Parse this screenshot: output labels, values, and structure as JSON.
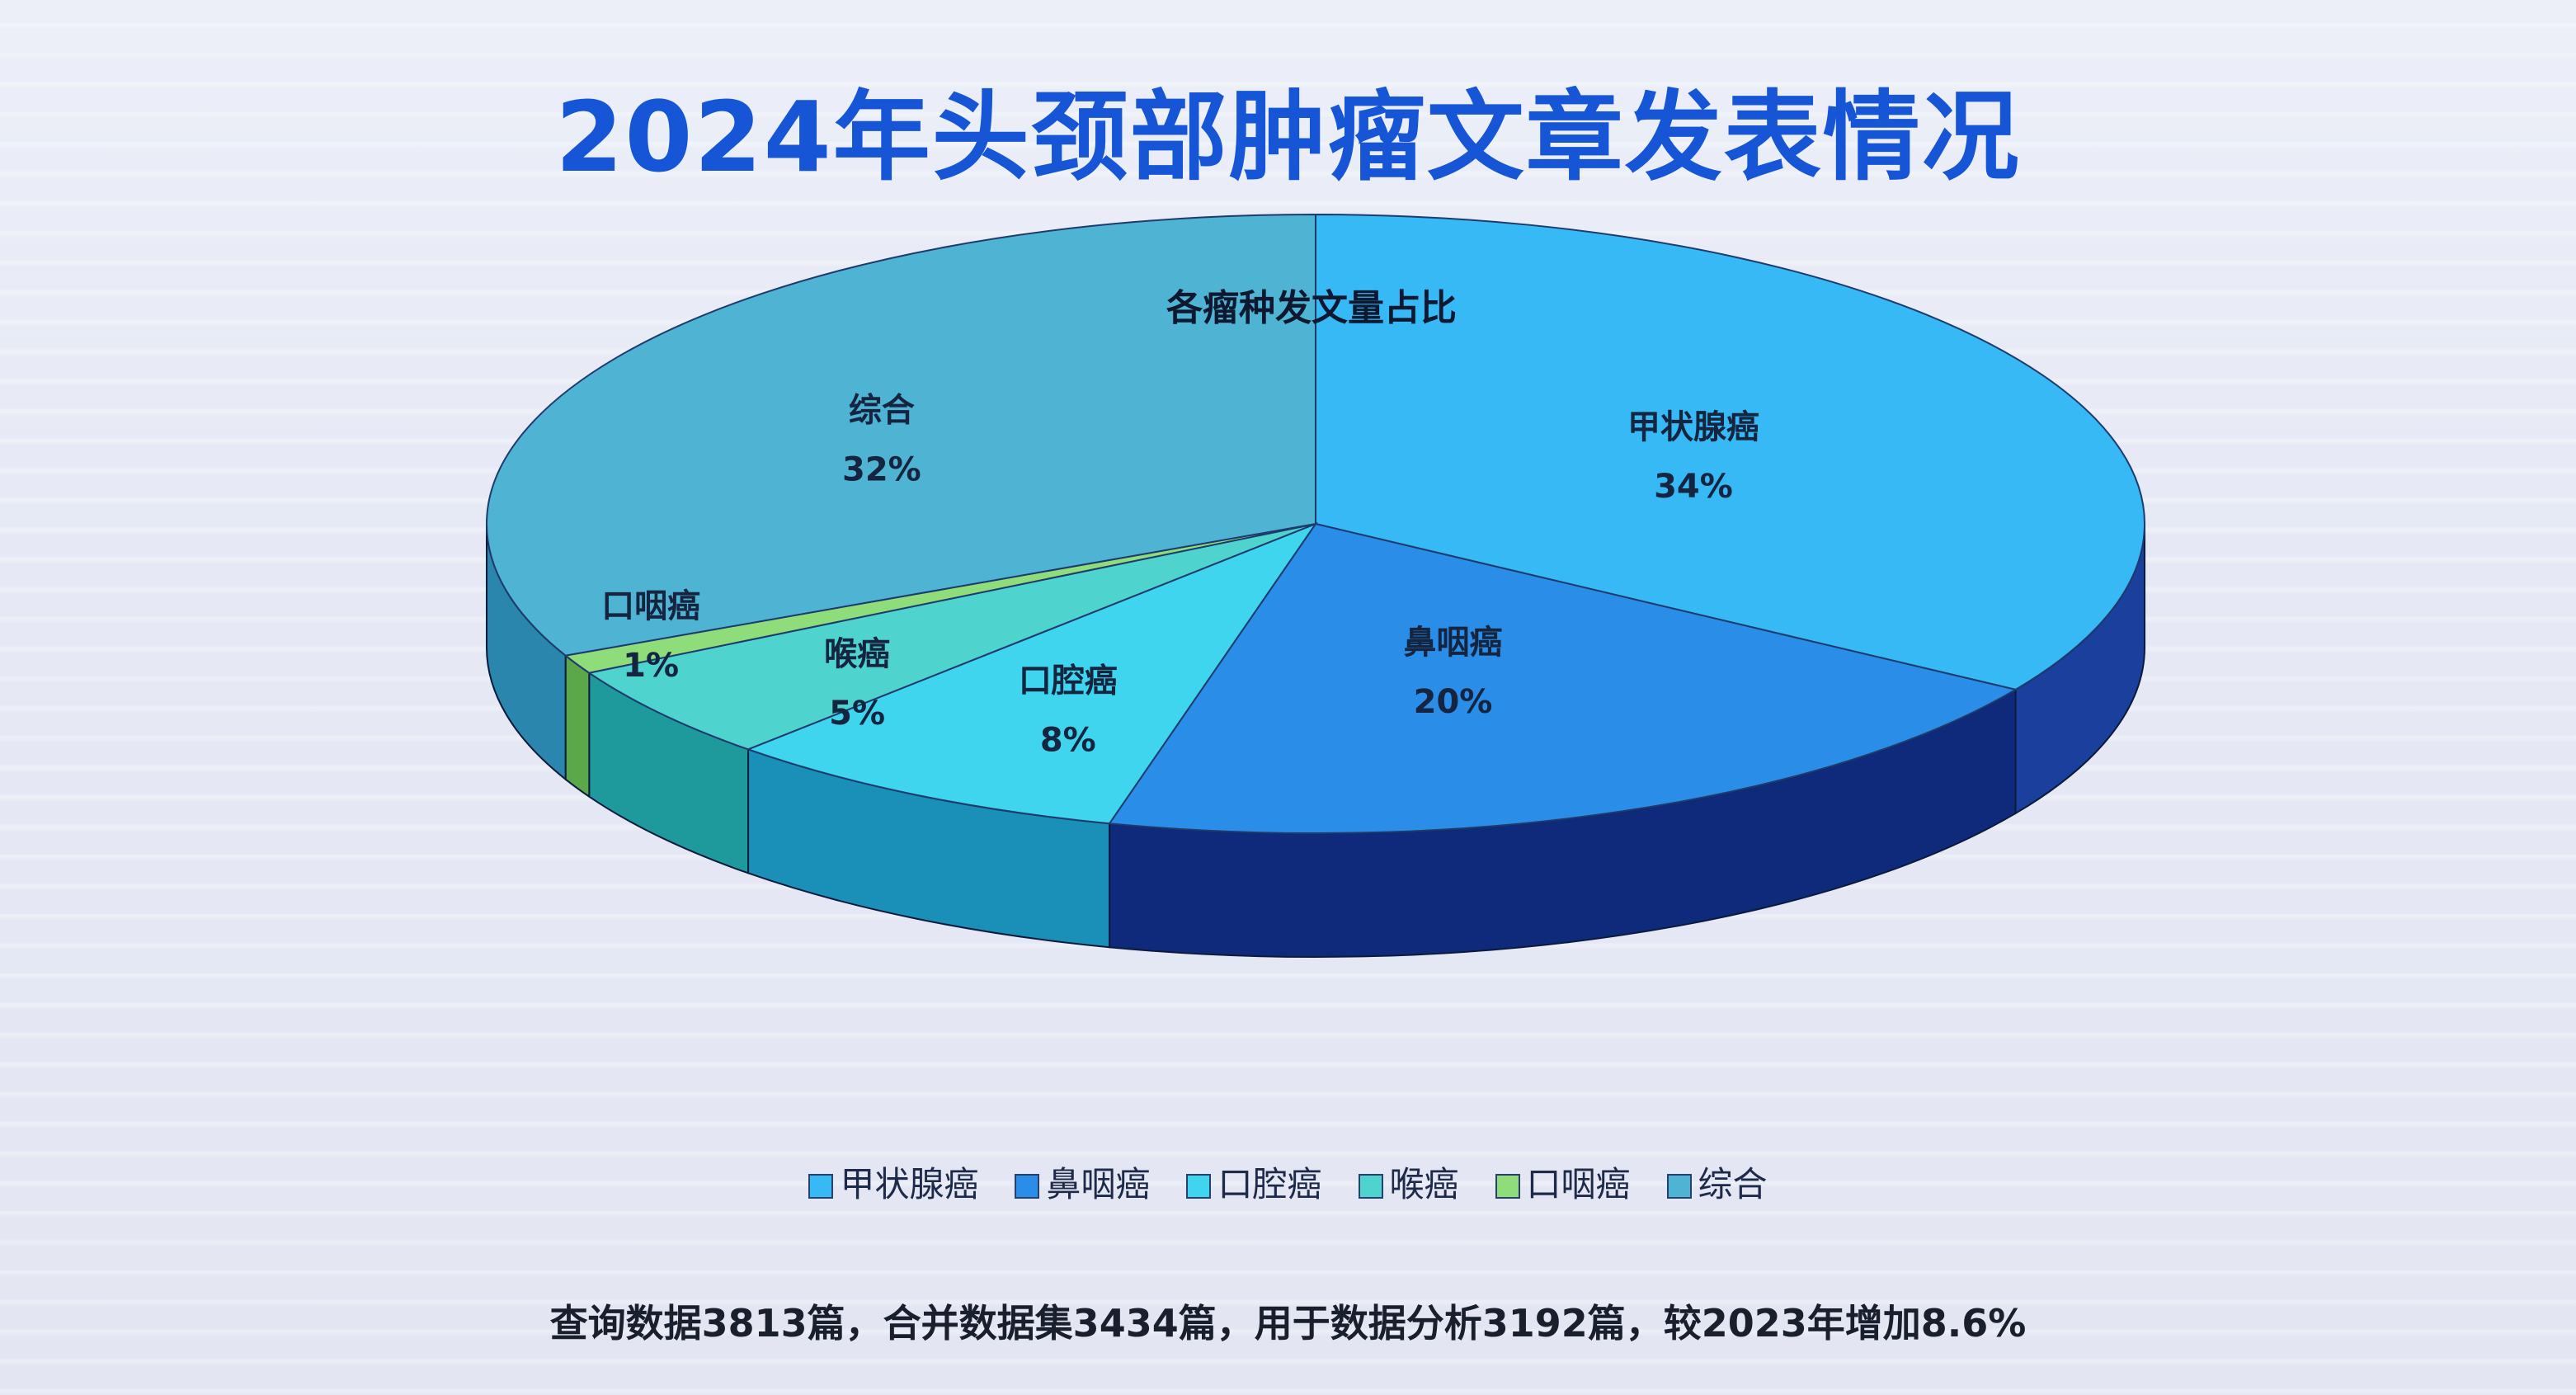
{
  "title": "2024年头颈部肿瘤文章发表情况",
  "footnote": "查询数据3813篇，合并数据集3434篇，用于数据分析3192篇，较2023年增加8.6%",
  "chart_data": {
    "type": "pie",
    "title": "各瘤种发文量占比",
    "legend_position": "bottom",
    "slices": [
      {
        "name": "甲状腺癌",
        "value": 34,
        "label": "34%",
        "color": "#36b9f5",
        "side_color": "#1b3f9c"
      },
      {
        "name": "鼻咽癌",
        "value": 20,
        "label": "20%",
        "color": "#2a8ee8",
        "side_color": "#0f2a7a"
      },
      {
        "name": "口腔癌",
        "value": 8,
        "label": "8%",
        "color": "#3fd5ee",
        "side_color": "#1a8fb8"
      },
      {
        "name": "喉癌",
        "value": 5,
        "label": "5%",
        "color": "#4ed3cf",
        "side_color": "#1f9a9c"
      },
      {
        "name": "口咽癌",
        "value": 1,
        "label": "1%",
        "color": "#8fdc7a",
        "side_color": "#5aa84a"
      },
      {
        "name": "综合",
        "value": 32,
        "label": "32%",
        "color": "#4fb3d3",
        "side_color": "#2a86ad"
      }
    ]
  }
}
